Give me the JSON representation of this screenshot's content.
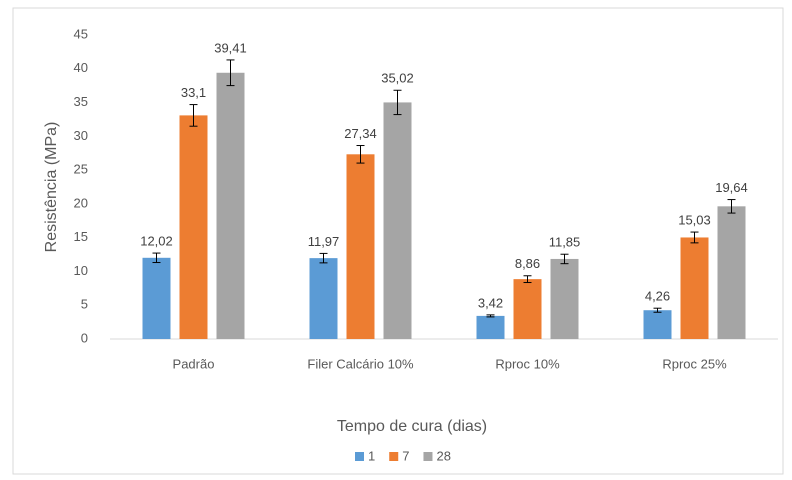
{
  "chart_data": {
    "type": "bar",
    "x_label": "Tempo de cura (dias)",
    "y_label": "Resistência (MPa)",
    "categories": [
      "Padrão",
      "Filer Calcário 10%",
      "Rproc 10%",
      "Rproc 25%"
    ],
    "series": [
      {
        "name": "1",
        "color": "#5b9bd5",
        "values": [
          12.02,
          11.97,
          3.42,
          4.26
        ],
        "value_labels": [
          "12,02",
          "11,97",
          "3,42",
          "4,26"
        ],
        "errors": [
          0.7,
          0.7,
          0.15,
          0.3
        ]
      },
      {
        "name": "7",
        "color": "#ed7d31",
        "values": [
          33.1,
          27.34,
          8.86,
          15.03
        ],
        "value_labels": [
          "33,1",
          "27,34",
          "8,86",
          "15,03"
        ],
        "errors": [
          1.6,
          1.3,
          0.5,
          0.8
        ]
      },
      {
        "name": "28",
        "color": "#a5a5a5",
        "values": [
          39.41,
          35.02,
          11.85,
          19.64
        ],
        "value_labels": [
          "39,41",
          "35,02",
          "11,85",
          "19,64"
        ],
        "errors": [
          1.9,
          1.8,
          0.7,
          1.0
        ]
      }
    ],
    "ylim": [
      0,
      45
    ],
    "yticks": [
      0,
      5,
      10,
      15,
      20,
      25,
      30,
      35,
      40,
      45
    ],
    "grid": false,
    "legend": "bottom"
  }
}
